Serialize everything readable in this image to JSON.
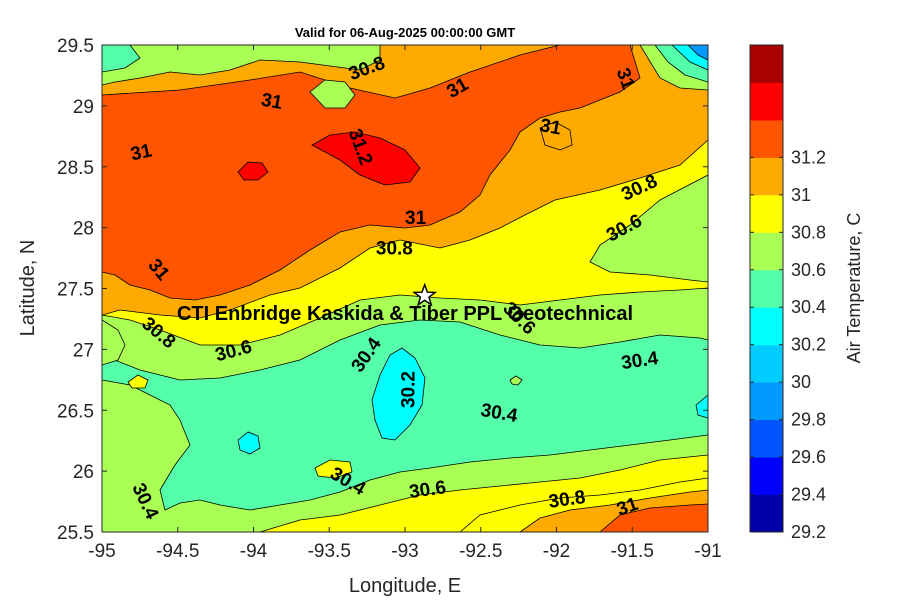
{
  "title": "Valid for 06-Aug-2025 00:00:00 GMT",
  "x_axis": {
    "label": "Longitude, E",
    "ticks": [
      "-95",
      "-94.5",
      "-94",
      "-93.5",
      "-93",
      "-92.5",
      "-92",
      "-91.5",
      "-91"
    ],
    "range": [
      -95,
      -91
    ]
  },
  "y_axis": {
    "label": "Latitude, N",
    "ticks": [
      "29.5",
      "29",
      "28.5",
      "28",
      "27.5",
      "27",
      "26.5",
      "26",
      "25.5"
    ],
    "range": [
      25.5,
      29.5
    ]
  },
  "site": {
    "label": "CTI Enbridge  Kaskida & Tiber PPL Geotechnical",
    "lon": -92.87,
    "lat": 27.44,
    "marker": "star-icon"
  },
  "colorbar": {
    "label": "Air Temperature, C",
    "levels": [
      29.2,
      29.4,
      29.6,
      29.8,
      30.0,
      30.2,
      30.4,
      30.6,
      30.8,
      31.0,
      31.2
    ],
    "tick_labels": [
      "31.2",
      "31",
      "30.8",
      "30.6",
      "30.4",
      "30.2",
      "30",
      "29.8",
      "29.6",
      "29.4",
      "29.2"
    ],
    "colors": [
      "#0000aa",
      "#0000ff",
      "#0055ff",
      "#0099ff",
      "#00ccff",
      "#00ffff",
      "#55ffaa",
      "#aaff55",
      "#ffff00",
      "#ffaa00",
      "#ff5500",
      "#ff0000",
      "#aa0000"
    ]
  },
  "contour_labels": [
    {
      "text": "30.8",
      "lon": -93.25,
      "lat": 29.3,
      "angle": -20
    },
    {
      "text": "31",
      "lon": -92.65,
      "lat": 29.14,
      "angle": -30
    },
    {
      "text": "31",
      "lon": -91.55,
      "lat": 29.22,
      "angle": 70
    },
    {
      "text": "31",
      "lon": -93.88,
      "lat": 29.03,
      "angle": 10
    },
    {
      "text": "31",
      "lon": -94.74,
      "lat": 28.61,
      "angle": -12
    },
    {
      "text": "31.2",
      "lon": -93.3,
      "lat": 28.66,
      "angle": 70
    },
    {
      "text": "31",
      "lon": -92.04,
      "lat": 28.82,
      "angle": 10
    },
    {
      "text": "30.8",
      "lon": -91.45,
      "lat": 28.32,
      "angle": -25
    },
    {
      "text": "30.6",
      "lon": -91.55,
      "lat": 27.99,
      "angle": -28
    },
    {
      "text": "31",
      "lon": -92.93,
      "lat": 28.07,
      "angle": 0
    },
    {
      "text": "30.8",
      "lon": -93.07,
      "lat": 27.82,
      "angle": 0
    },
    {
      "text": "31",
      "lon": -94.63,
      "lat": 27.65,
      "angle": 50
    },
    {
      "text": "30.6",
      "lon": -92.25,
      "lat": 27.25,
      "angle": 45
    },
    {
      "text": "30.8",
      "lon": -94.63,
      "lat": 27.13,
      "angle": 40
    },
    {
      "text": "30.6",
      "lon": -94.13,
      "lat": 26.98,
      "angle": -15
    },
    {
      "text": "30.4",
      "lon": -93.25,
      "lat": 26.95,
      "angle": -55
    },
    {
      "text": "30.2",
      "lon": -92.97,
      "lat": 26.67,
      "angle": -90
    },
    {
      "text": "30.4",
      "lon": -91.45,
      "lat": 26.9,
      "angle": -8
    },
    {
      "text": "30.4",
      "lon": -92.38,
      "lat": 26.47,
      "angle": 10
    },
    {
      "text": "30.4",
      "lon": -93.38,
      "lat": 25.91,
      "angle": 30
    },
    {
      "text": "30.6",
      "lon": -92.85,
      "lat": 25.84,
      "angle": -8
    },
    {
      "text": "30.8",
      "lon": -91.93,
      "lat": 25.76,
      "angle": -8
    },
    {
      "text": "31",
      "lon": -91.53,
      "lat": 25.7,
      "angle": -20
    },
    {
      "text": "30.4",
      "lon": -94.72,
      "lat": 25.75,
      "angle": 65
    }
  ]
}
